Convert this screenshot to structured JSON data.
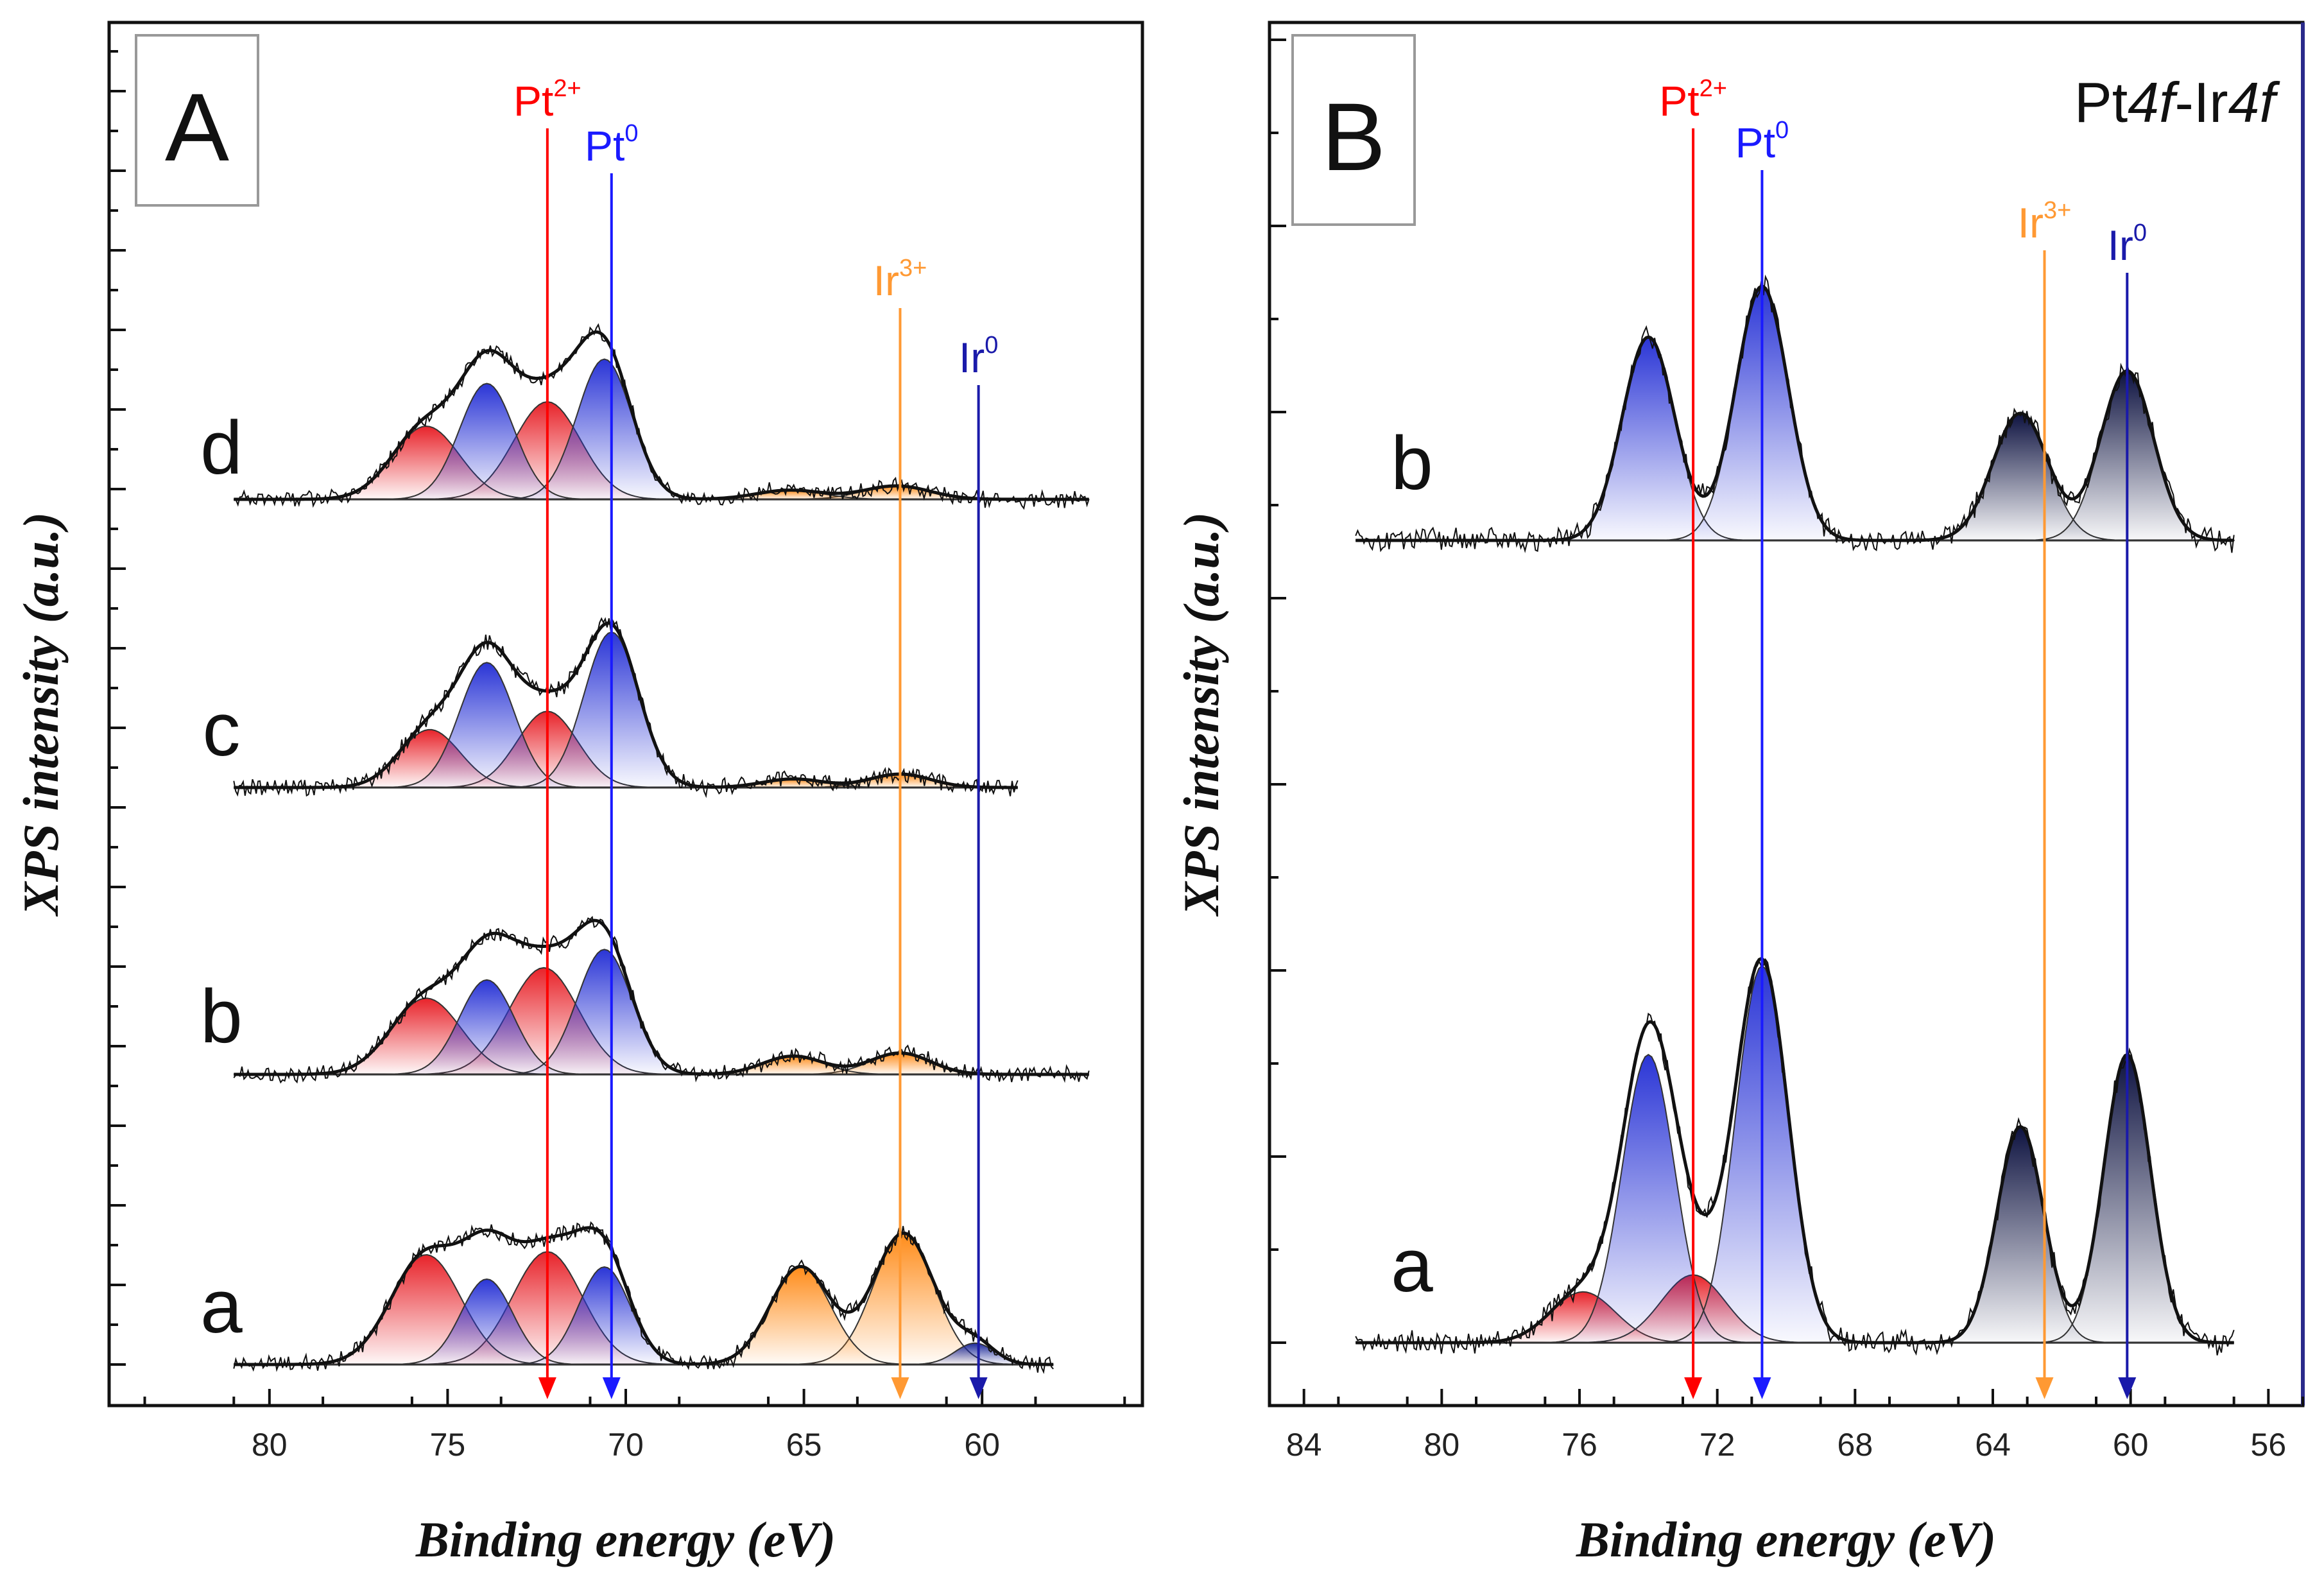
{
  "chart_data": [
    {
      "type": "line",
      "panel_label": "A",
      "xlabel": "Binding energy (eV)",
      "ylabel": "XPS intensity (a.u.)",
      "xlim": [
        84.5,
        55.5
      ],
      "x_ticks": [
        80,
        75,
        70,
        65,
        60
      ],
      "tick_labels": [
        "80",
        "75",
        "70",
        "65",
        "60"
      ],
      "spectra": [
        {
          "label": "a",
          "fit_range": [
            81,
            58
          ],
          "components": [
            {
              "name": "Pt2+ 4f7/2",
              "center": 72.2,
              "height": 1.85,
              "fwhm": 2.3,
              "color": "#e8232a"
            },
            {
              "name": "Pt2+ 4f5/2",
              "center": 75.6,
              "height": 1.8,
              "fwhm": 2.3,
              "color": "#e8232a"
            },
            {
              "name": "Pt0 4f7/2",
              "center": 70.6,
              "height": 1.6,
              "fwhm": 1.7,
              "color": "#2a35d6"
            },
            {
              "name": "Pt0 4f5/2",
              "center": 73.9,
              "height": 1.4,
              "fwhm": 1.7,
              "color": "#2a35d6"
            },
            {
              "name": "Ir3+ 4f7/2",
              "center": 62.2,
              "height": 2.15,
              "fwhm": 2.0,
              "color": "#ff8c1a"
            },
            {
              "name": "Ir3+ 4f5/2",
              "center": 65.1,
              "height": 1.6,
              "fwhm": 2.0,
              "color": "#ff8c1a"
            },
            {
              "name": "Ir0 4f7/2",
              "center": 60.2,
              "height": 0.35,
              "fwhm": 1.3,
              "color": "#1d2a9a"
            }
          ]
        },
        {
          "label": "b",
          "fit_range": [
            81,
            57
          ],
          "components": [
            {
              "name": "Pt2+ 4f7/2",
              "center": 72.3,
              "height": 1.75,
              "fwhm": 2.3,
              "color": "#e8232a"
            },
            {
              "name": "Pt2+ 4f5/2",
              "center": 75.6,
              "height": 1.25,
              "fwhm": 2.3,
              "color": "#e8232a"
            },
            {
              "name": "Pt0 4f7/2",
              "center": 70.6,
              "height": 2.05,
              "fwhm": 1.8,
              "color": "#2a35d6"
            },
            {
              "name": "Pt0 4f5/2",
              "center": 73.9,
              "height": 1.55,
              "fwhm": 1.8,
              "color": "#2a35d6"
            },
            {
              "name": "Ir3+ 4f7/2",
              "center": 62.3,
              "height": 0.35,
              "fwhm": 2.0,
              "color": "#ff8c1a"
            },
            {
              "name": "Ir3+ 4f5/2",
              "center": 65.3,
              "height": 0.3,
              "fwhm": 2.0,
              "color": "#ff8c1a"
            }
          ]
        },
        {
          "label": "c",
          "fit_range": [
            81,
            59
          ],
          "components": [
            {
              "name": "Pt2+ 4f7/2",
              "center": 72.2,
              "height": 1.25,
              "fwhm": 2.0,
              "color": "#e8232a"
            },
            {
              "name": "Pt2+ 4f5/2",
              "center": 75.5,
              "height": 0.95,
              "fwhm": 2.0,
              "color": "#e8232a"
            },
            {
              "name": "Pt0 4f7/2",
              "center": 70.4,
              "height": 2.55,
              "fwhm": 1.8,
              "color": "#2a35d6"
            },
            {
              "name": "Pt0 4f5/2",
              "center": 73.9,
              "height": 2.05,
              "fwhm": 1.8,
              "color": "#2a35d6"
            },
            {
              "name": "Ir3+ 4f7/2",
              "center": 62.3,
              "height": 0.22,
              "fwhm": 2.0,
              "color": "#ff8c1a"
            },
            {
              "name": "Ir3+ 4f5/2",
              "center": 65.3,
              "height": 0.14,
              "fwhm": 2.0,
              "color": "#ff8c1a"
            }
          ]
        },
        {
          "label": "d",
          "fit_range": [
            81,
            57
          ],
          "components": [
            {
              "name": "Pt2+ 4f7/2",
              "center": 72.2,
              "height": 1.6,
              "fwhm": 2.2,
              "color": "#e8232a"
            },
            {
              "name": "Pt2+ 4f5/2",
              "center": 75.6,
              "height": 1.2,
              "fwhm": 2.2,
              "color": "#e8232a"
            },
            {
              "name": "Pt0 4f7/2",
              "center": 70.6,
              "height": 2.3,
              "fwhm": 1.8,
              "color": "#2a35d6"
            },
            {
              "name": "Pt0 4f5/2",
              "center": 73.9,
              "height": 1.9,
              "fwhm": 1.8,
              "color": "#2a35d6"
            },
            {
              "name": "Ir3+ 4f7/2",
              "center": 62.4,
              "height": 0.22,
              "fwhm": 2.2,
              "color": "#ff8c1a"
            },
            {
              "name": "Ir3+ 4f5/2",
              "center": 65.4,
              "height": 0.15,
              "fwhm": 2.2,
              "color": "#ff8c1a"
            }
          ]
        }
      ],
      "reference_lines": [
        {
          "ion": "Pt",
          "charge": "2+",
          "x": 72.2,
          "color": "#ff0000"
        },
        {
          "ion": "Pt",
          "charge": "0",
          "x": 70.4,
          "color": "#1a1aff"
        },
        {
          "ion": "Ir",
          "charge": "3+",
          "x": 62.3,
          "color": "#ff9933"
        },
        {
          "ion": "Ir",
          "charge": "0",
          "x": 60.1,
          "color": "#1a1aaa"
        }
      ]
    },
    {
      "type": "line",
      "panel_label": "B",
      "title": "Pt4f-Ir4f",
      "title_parts": [
        "Pt",
        "4f",
        "-Ir",
        "4f"
      ],
      "xlabel": "Binding energy (eV)",
      "ylabel": "XPS intensity (a.u.)",
      "xlim": [
        85,
        55
      ],
      "x_ticks": [
        84,
        80,
        76,
        72,
        68,
        64,
        60,
        56
      ],
      "tick_labels": [
        "84",
        "80",
        "76",
        "72",
        "68",
        "64",
        "60",
        "56"
      ],
      "spectra": [
        {
          "label": "a",
          "fit_range": [
            82.5,
            57
          ],
          "components": [
            {
              "name": "Pt2+ 4f5/2",
              "center": 75.9,
              "height": 0.6,
              "fwhm": 2.2,
              "color": "#e8232a"
            },
            {
              "name": "Pt2+ 4f7/2",
              "center": 72.7,
              "height": 0.8,
              "fwhm": 2.2,
              "color": "#e8232a"
            },
            {
              "name": "Pt0 4f5/2",
              "center": 74.0,
              "height": 3.4,
              "fwhm": 1.8,
              "color": "#2a35d6"
            },
            {
              "name": "Pt0 4f7/2",
              "center": 70.7,
              "height": 4.45,
              "fwhm": 1.8,
              "color": "#2a35d6"
            },
            {
              "name": "Ir0 4f5/2",
              "center": 63.2,
              "height": 2.55,
              "fwhm": 1.6,
              "color": "#0d1240"
            },
            {
              "name": "Ir0 4f7/2",
              "center": 60.1,
              "height": 3.4,
              "fwhm": 1.6,
              "color": "#0d1240"
            }
          ]
        },
        {
          "label": "b",
          "fit_range": [
            82.5,
            57
          ],
          "components": [
            {
              "name": "Pt0 4f5/2",
              "center": 74.0,
              "height": 2.4,
              "fwhm": 1.8,
              "color": "#2a35d6"
            },
            {
              "name": "Pt0 4f7/2",
              "center": 70.7,
              "height": 3.0,
              "fwhm": 1.8,
              "color": "#2a35d6"
            },
            {
              "name": "Ir0 4f5/2",
              "center": 63.2,
              "height": 1.5,
              "fwhm": 1.9,
              "color": "#0d1240"
            },
            {
              "name": "Ir0 4f7/2",
              "center": 60.1,
              "height": 2.0,
              "fwhm": 1.8,
              "color": "#0d1240"
            }
          ]
        }
      ],
      "reference_lines": [
        {
          "ion": "Pt",
          "charge": "2+",
          "x": 72.7,
          "color": "#ff0000"
        },
        {
          "ion": "Pt",
          "charge": "0",
          "x": 70.7,
          "color": "#1a1aff"
        },
        {
          "ion": "Ir",
          "charge": "3+",
          "x": 62.5,
          "color": "#ff9933"
        },
        {
          "ion": "Ir",
          "charge": "0",
          "x": 60.1,
          "color": "#1a1aaa"
        }
      ]
    }
  ]
}
